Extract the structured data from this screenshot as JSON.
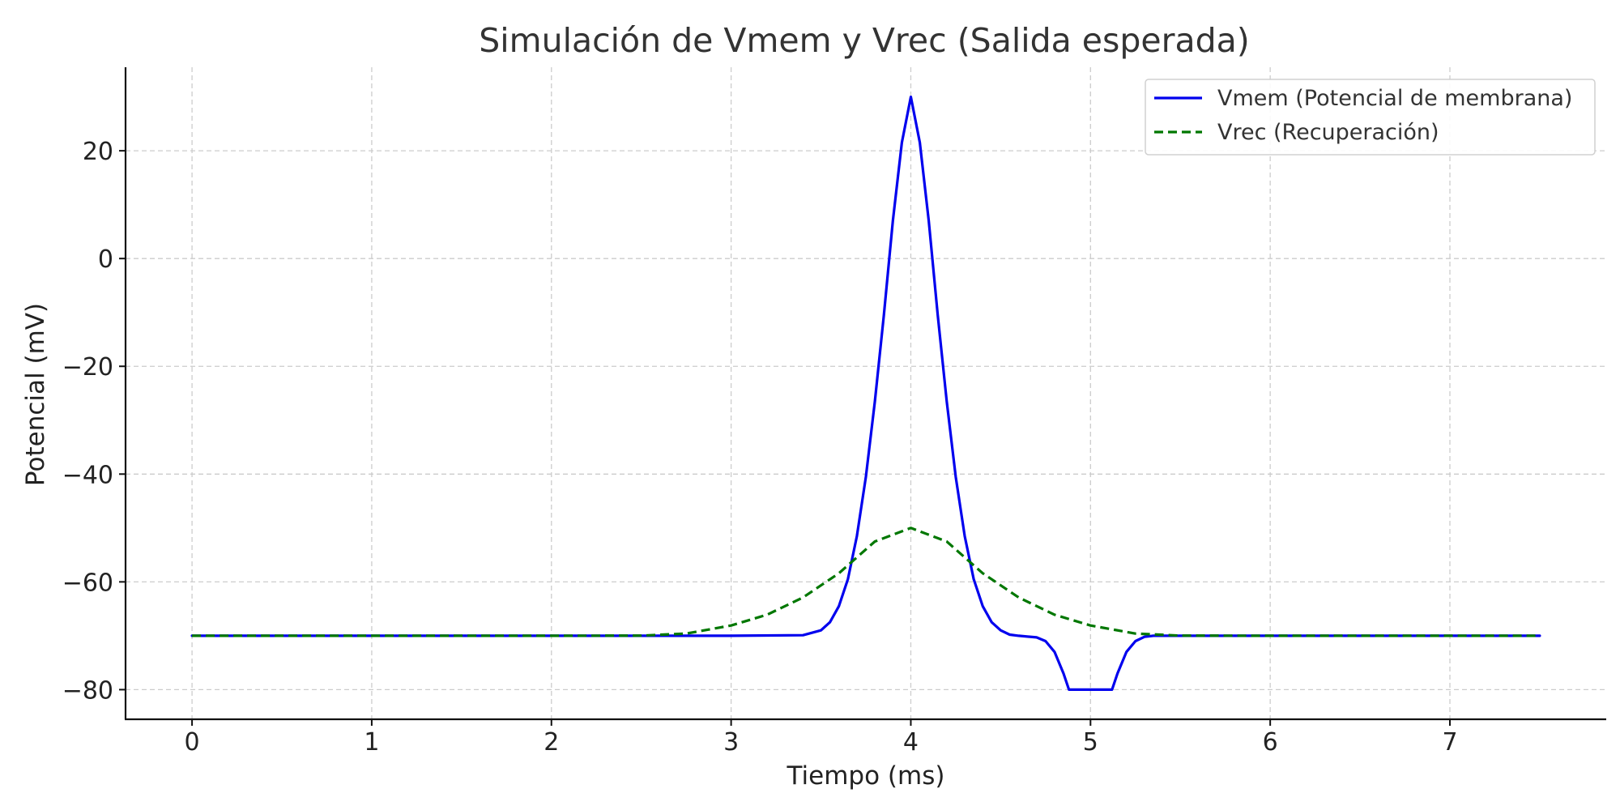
{
  "chart_data": {
    "type": "line",
    "title": "Simulación de Vmem y Vrec (Salida esperada)",
    "xlabel": "Tiempo (ms)",
    "ylabel": "Potencial (mV)",
    "xlim": [
      -0.37,
      7.87
    ],
    "ylim": [
      -85.5,
      35.5
    ],
    "xticks": [
      0,
      1,
      2,
      3,
      4,
      5,
      6,
      7
    ],
    "xtick_labels": [
      "0",
      "1",
      "2",
      "3",
      "4",
      "5",
      "6",
      "7"
    ],
    "yticks": [
      -80,
      -60,
      -40,
      -20,
      0,
      20
    ],
    "ytick_labels": [
      "−80",
      "−60",
      "−40",
      "−20",
      "0",
      "20"
    ],
    "grid": true,
    "legend_position": "top-right",
    "series": [
      {
        "name": "Vmem (Potencial de membrana)",
        "color": "#0000ee",
        "style": "solid",
        "x": [
          0,
          1,
          2,
          3,
          3.4,
          3.5,
          3.55,
          3.6,
          3.65,
          3.7,
          3.75,
          3.8,
          3.85,
          3.9,
          3.95,
          4.0,
          4.05,
          4.1,
          4.15,
          4.2,
          4.25,
          4.3,
          4.35,
          4.4,
          4.45,
          4.5,
          4.55,
          4.6,
          4.7,
          4.75,
          4.8,
          4.85,
          4.88,
          5.0,
          5.12,
          5.15,
          5.2,
          5.25,
          5.3,
          5.35,
          5.5,
          6.0,
          7.0,
          7.5
        ],
        "y": [
          -70,
          -70,
          -70,
          -70,
          -69.9,
          -69,
          -67.5,
          -64.5,
          -59.5,
          -51.5,
          -40.5,
          -26.5,
          -10.5,
          7,
          21.5,
          30,
          21.5,
          7,
          -10.5,
          -26.5,
          -40.5,
          -51.5,
          -59.5,
          -64.5,
          -67.5,
          -69,
          -69.8,
          -70,
          -70.3,
          -71,
          -73,
          -77,
          -80,
          -80,
          -80,
          -77,
          -73,
          -71,
          -70.2,
          -70,
          -70,
          -70,
          -70,
          -70
        ]
      },
      {
        "name": "Vrec (Recuperación)",
        "color": "#007700",
        "style": "dashed",
        "x": [
          0,
          1,
          2,
          2.5,
          2.75,
          3.0,
          3.2,
          3.4,
          3.6,
          3.8,
          4.0,
          4.2,
          4.4,
          4.6,
          4.8,
          5.0,
          5.25,
          5.5,
          6.0,
          7.0,
          7.5
        ],
        "y": [
          -70,
          -70,
          -70,
          -69.98,
          -69.6,
          -68.1,
          -66.1,
          -62.9,
          -58.4,
          -52.5,
          -50,
          -52.5,
          -58.4,
          -62.9,
          -66.1,
          -68.1,
          -69.6,
          -69.98,
          -70,
          -70,
          -70
        ]
      }
    ]
  }
}
